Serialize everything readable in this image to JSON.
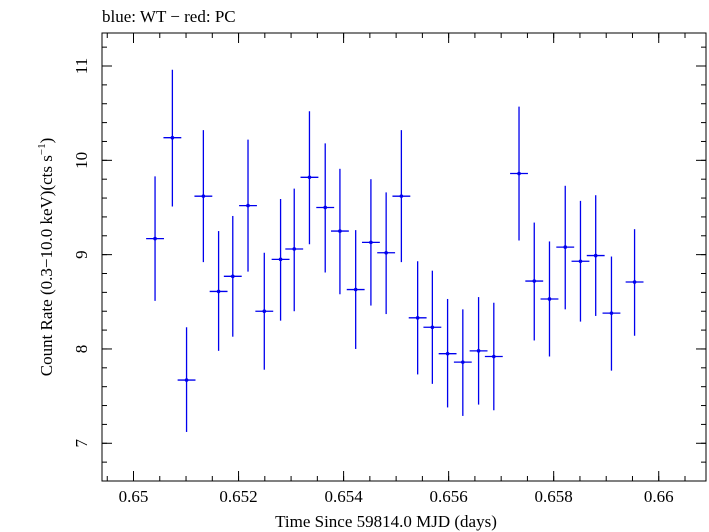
{
  "chart_data": {
    "type": "scatter",
    "title": "blue: WT − red: PC",
    "xlabel": "Time Since 59814.0 MJD (days)",
    "ylabel_parts": {
      "lead": "Count Rate (0.3−10.0 keV)(cts s",
      "exp": "−1",
      "trail": ")"
    },
    "xlim": [
      0.6494,
      0.6609
    ],
    "ylim": [
      6.6,
      11.35
    ],
    "xticks": [
      0.65,
      0.652,
      0.654,
      0.656,
      0.658,
      0.66
    ],
    "xtick_labels": [
      "0.65",
      "0.652",
      "0.654",
      "0.656",
      "0.658",
      "0.66"
    ],
    "yticks": [
      7,
      8,
      9,
      10,
      11
    ],
    "ytick_labels": [
      "7",
      "8",
      "9",
      "10",
      "11"
    ],
    "minor_xtick_step": 0.0005,
    "minor_ytick_step": 0.2,
    "series": [
      {
        "color": "#0000ee",
        "x_half_width": 0.00017,
        "points": [
          {
            "x": 0.65041,
            "y": 9.17,
            "lo": 8.51,
            "hi": 9.83
          },
          {
            "x": 0.65074,
            "y": 10.24,
            "lo": 9.51,
            "hi": 10.96
          },
          {
            "x": 0.65101,
            "y": 7.67,
            "lo": 7.12,
            "hi": 8.23
          },
          {
            "x": 0.65133,
            "y": 9.62,
            "lo": 8.92,
            "hi": 10.32
          },
          {
            "x": 0.65162,
            "y": 8.61,
            "lo": 7.98,
            "hi": 9.25
          },
          {
            "x": 0.65189,
            "y": 8.77,
            "lo": 8.13,
            "hi": 9.41
          },
          {
            "x": 0.65218,
            "y": 9.52,
            "lo": 8.82,
            "hi": 10.22
          },
          {
            "x": 0.65249,
            "y": 8.4,
            "lo": 7.78,
            "hi": 9.02
          },
          {
            "x": 0.6528,
            "y": 8.95,
            "lo": 8.3,
            "hi": 9.59
          },
          {
            "x": 0.65306,
            "y": 9.06,
            "lo": 8.4,
            "hi": 9.7
          },
          {
            "x": 0.65335,
            "y": 9.82,
            "lo": 9.11,
            "hi": 10.52
          },
          {
            "x": 0.65365,
            "y": 9.5,
            "lo": 8.81,
            "hi": 10.18
          },
          {
            "x": 0.65393,
            "y": 9.25,
            "lo": 8.58,
            "hi": 9.91
          },
          {
            "x": 0.65423,
            "y": 8.63,
            "lo": 8.0,
            "hi": 9.26
          },
          {
            "x": 0.65452,
            "y": 9.13,
            "lo": 8.46,
            "hi": 9.8
          },
          {
            "x": 0.65481,
            "y": 9.02,
            "lo": 8.37,
            "hi": 9.66
          },
          {
            "x": 0.6551,
            "y": 9.62,
            "lo": 8.92,
            "hi": 10.32
          },
          {
            "x": 0.65541,
            "y": 8.33,
            "lo": 7.73,
            "hi": 8.93
          },
          {
            "x": 0.65569,
            "y": 8.23,
            "lo": 7.63,
            "hi": 8.83
          },
          {
            "x": 0.65598,
            "y": 7.95,
            "lo": 7.38,
            "hi": 8.53
          },
          {
            "x": 0.65627,
            "y": 7.86,
            "lo": 7.29,
            "hi": 8.42
          },
          {
            "x": 0.65657,
            "y": 7.98,
            "lo": 7.41,
            "hi": 8.55
          },
          {
            "x": 0.65686,
            "y": 7.92,
            "lo": 7.35,
            "hi": 8.49
          },
          {
            "x": 0.65734,
            "y": 9.86,
            "lo": 9.15,
            "hi": 10.57
          },
          {
            "x": 0.65763,
            "y": 8.72,
            "lo": 8.09,
            "hi": 9.34
          },
          {
            "x": 0.65792,
            "y": 8.53,
            "lo": 7.92,
            "hi": 9.14
          },
          {
            "x": 0.65822,
            "y": 9.08,
            "lo": 8.42,
            "hi": 9.73
          },
          {
            "x": 0.65851,
            "y": 8.93,
            "lo": 8.29,
            "hi": 9.57
          },
          {
            "x": 0.6588,
            "y": 8.99,
            "lo": 8.35,
            "hi": 9.63
          },
          {
            "x": 0.6591,
            "y": 8.38,
            "lo": 7.77,
            "hi": 8.98
          },
          {
            "x": 0.65954,
            "y": 8.71,
            "lo": 8.14,
            "hi": 9.27
          }
        ]
      }
    ]
  }
}
